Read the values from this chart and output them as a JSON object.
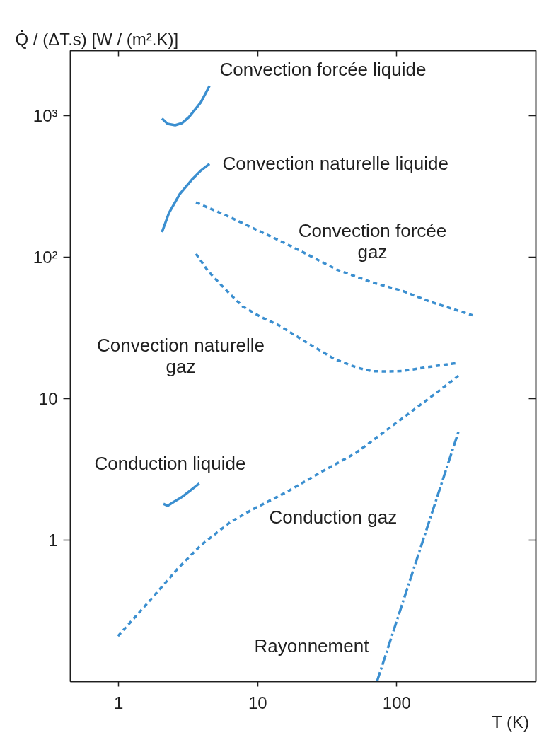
{
  "chart_data": {
    "type": "line",
    "ylabel": "Q̇ / (ΔT.s) [W / (m².K)]",
    "xlabel": "T (K)",
    "log": "xy",
    "xlim": [
      0.45,
      1000
    ],
    "ylim": [
      0.1,
      2900
    ],
    "xticks": [
      1,
      10,
      100
    ],
    "yticks": [
      1,
      10,
      {
        "value": 100,
        "label": "10²"
      },
      {
        "value": 1000,
        "label": "10³"
      }
    ],
    "series": [
      {
        "name": "Convection forcée liquide",
        "color": "#3b8fd0",
        "line_style": "solid",
        "x": [
          2.05,
          2.25,
          2.55,
          2.85,
          3.2,
          3.9,
          4.5
        ],
        "values": [
          960,
          880,
          860,
          890,
          980,
          1250,
          1630
        ]
      },
      {
        "name": "Convection naturelle liquide",
        "color": "#3b8fd0",
        "line_style": "solid",
        "x": [
          2.05,
          2.3,
          2.75,
          3.35,
          3.9,
          4.5
        ],
        "values": [
          151,
          206,
          280,
          353,
          411,
          458
        ]
      },
      {
        "name": "Convection forcée gaz",
        "color": "#3b8fd0",
        "line_style": "dotted",
        "x": [
          3.6,
          6,
          14,
          20,
          37,
          65,
          110,
          180,
          350
        ],
        "values": [
          245,
          197,
          133,
          112,
          82,
          67,
          58,
          48,
          39
        ]
      },
      {
        "name": "Convection naturelle gaz",
        "color": "#3b8fd0",
        "line_style": "dotted",
        "x": [
          3.6,
          4.4,
          5.7,
          7.8,
          10.5,
          14.3,
          22.5,
          36,
          53,
          66,
          84,
          109,
          163,
          270
        ],
        "values": [
          106,
          80,
          61,
          45,
          38,
          33,
          25,
          19,
          16.5,
          15.7,
          15.6,
          15.7,
          16.7,
          17.9
        ]
      },
      {
        "name": "Conduction liquide",
        "color": "#3b8fd0",
        "line_style": "solid",
        "x": [
          2.1,
          2.25,
          2.5,
          2.85,
          3.3,
          3.8
        ],
        "values": [
          1.81,
          1.75,
          1.87,
          2.02,
          2.26,
          2.52
        ]
      },
      {
        "name": "Conduction gaz",
        "color": "#3b8fd0",
        "line_style": "dotted",
        "x": [
          0.99,
          1.66,
          2.7,
          3.95,
          6.4,
          9.4,
          16,
          28,
          51,
          92,
          176,
          277
        ],
        "values": [
          0.21,
          0.37,
          0.64,
          0.93,
          1.35,
          1.67,
          2.18,
          3.0,
          4.15,
          6.4,
          10.3,
          14.5
        ]
      },
      {
        "name": "Rayonnement",
        "color": "#3b8fd0",
        "line_style": "dashdot",
        "x": [
          72,
          280
        ],
        "values": [
          0.1,
          6.0
        ]
      }
    ]
  }
}
